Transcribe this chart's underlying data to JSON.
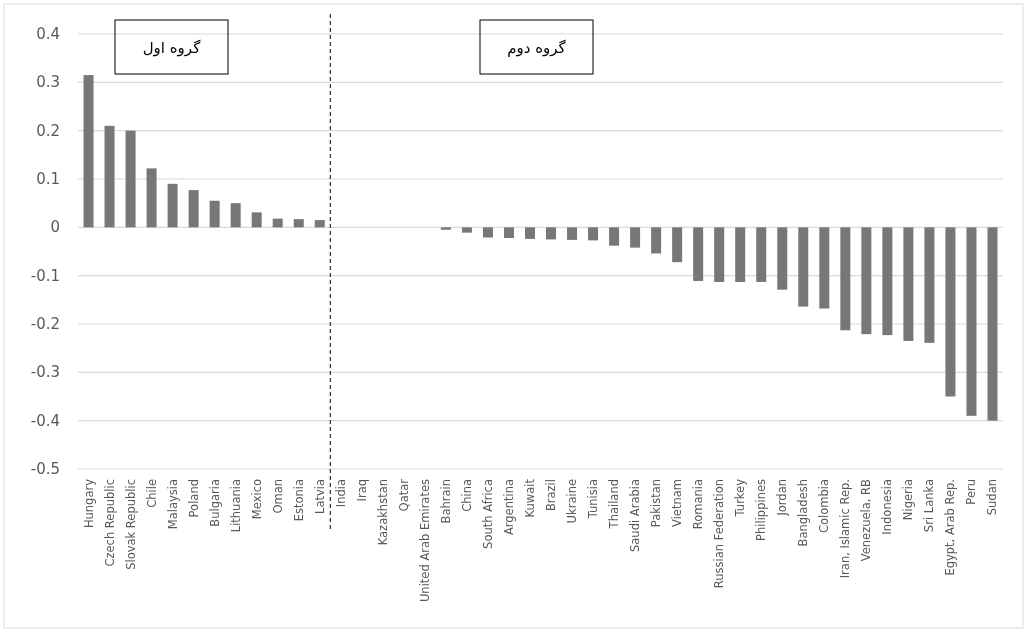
{
  "chart_data": {
    "type": "bar",
    "categories": [
      "Hungary",
      "Czech Republic",
      "Slovak Republic",
      "Chile",
      "Malaysia",
      "Poland",
      "Bulgaria",
      "Lithuania",
      "Mexico",
      "Oman",
      "Estonia",
      "Latvia",
      "India",
      "Iraq",
      "Kazakhstan",
      "Qatar",
      "United Arab Emirates",
      "Bahrain",
      "China",
      "South Africa",
      "Argentina",
      "Kuwait",
      "Brazil",
      "Ukraine",
      "Tunisia",
      "Thailand",
      "Saudi Arabia",
      "Pakistan",
      "Vietnam",
      "Romania",
      "Russian Federation",
      "Turkey",
      "Philippines",
      "Jordan",
      "Bangladesh",
      "Colombia",
      "Iran, Islamic Rep.",
      "Venezuela, RB",
      "Indonesia",
      "Nigeria",
      "Sri Lanka",
      "Egypt, Arab Rep.",
      "Peru",
      "Sudan"
    ],
    "values": [
      0.315,
      0.21,
      0.2,
      0.122,
      0.09,
      0.077,
      0.055,
      0.05,
      0.031,
      0.018,
      0.017,
      0.015,
      0,
      0,
      0,
      0,
      0,
      -0.005,
      -0.011,
      -0.021,
      -0.022,
      -0.024,
      -0.025,
      -0.026,
      -0.027,
      -0.038,
      -0.042,
      -0.054,
      -0.072,
      -0.111,
      -0.113,
      -0.113,
      -0.113,
      -0.129,
      -0.164,
      -0.168,
      -0.213,
      -0.221,
      -0.223,
      -0.235,
      -0.239,
      -0.35,
      -0.39,
      -0.4
    ],
    "color": "#76777b",
    "ylim": [
      -0.5,
      0.4
    ],
    "yticks": [
      -0.5,
      -0.4,
      -0.3,
      -0.2,
      -0.1,
      0,
      0.1,
      0.2,
      0.3,
      0.4
    ],
    "grid": "y",
    "annotations": [
      "گروه اول",
      "گروه دوم"
    ]
  }
}
